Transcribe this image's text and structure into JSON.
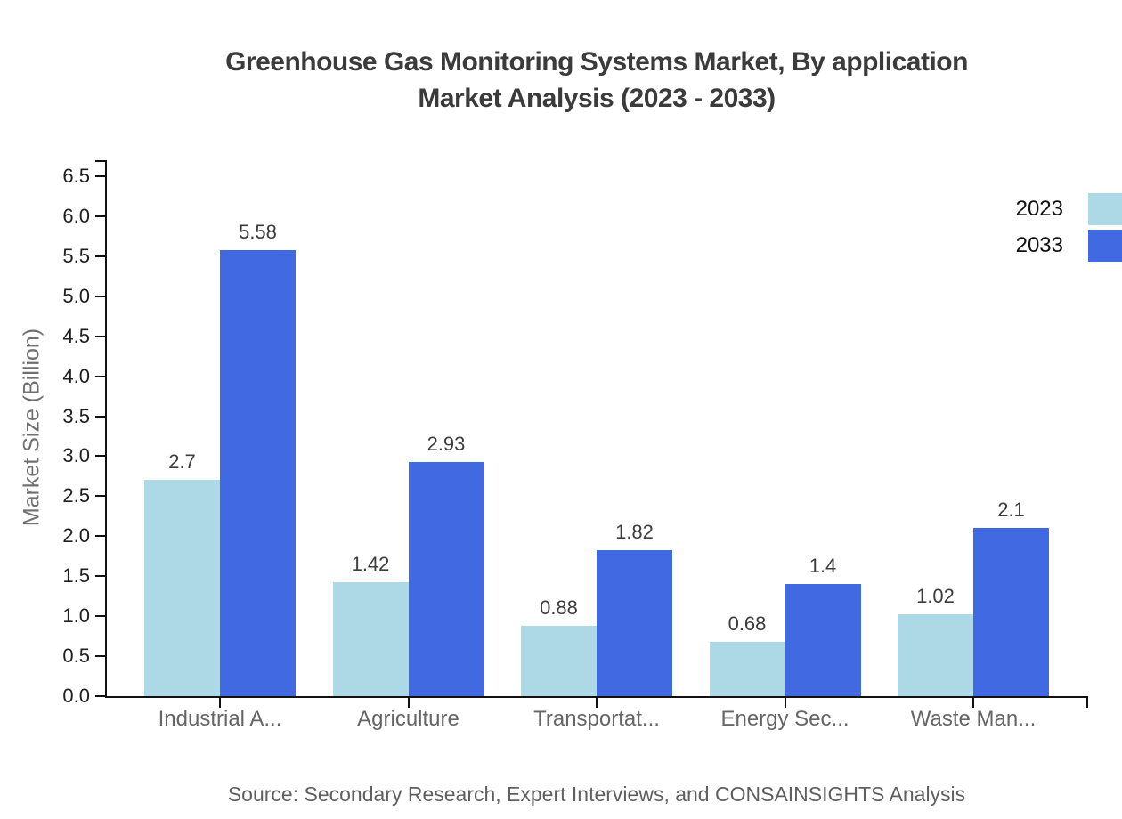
{
  "header": {
    "title_line1": "Greenhouse Gas Monitoring Systems Market, By application",
    "title_line2": "Market Analysis (2023 - 2033)"
  },
  "chart_data": {
    "type": "bar",
    "title": "Greenhouse Gas Monitoring Systems Market, By application Market Analysis (2023 - 2033)",
    "categories": [
      "Industrial A...",
      "Agriculture",
      "Transportat...",
      "Energy Sec...",
      "Waste Man..."
    ],
    "series": [
      {
        "name": "2023",
        "color": "#ADD8E6",
        "values": [
          2.7,
          1.42,
          0.88,
          0.68,
          1.02
        ]
      },
      {
        "name": "2033",
        "color": "#4169E1",
        "values": [
          5.58,
          2.93,
          1.82,
          1.4,
          2.1
        ]
      }
    ],
    "xlabel": "",
    "ylabel": "Market Size (Billion)",
    "ylim": [
      0,
      6.5
    ],
    "ytick_step": 0.5,
    "grid": false,
    "legend_position": "top-right",
    "value_labels_shown": true
  },
  "footer": {
    "source": "Source: Secondary Research, Expert Interviews, and CONSAINSIGHTS Analysis"
  }
}
